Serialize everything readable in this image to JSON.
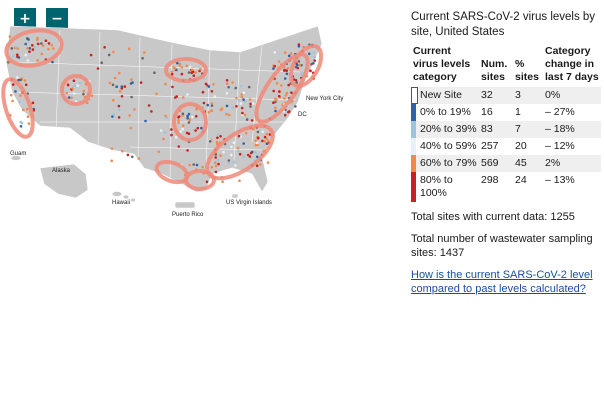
{
  "controls": {
    "zoom_in": "+",
    "zoom_out": "−"
  },
  "map": {
    "labels": {
      "new_york_city": "New York City",
      "dc": "DC",
      "guam": "Guam",
      "alaska": "Alaska",
      "hawaii": "Hawaii",
      "puerto_rico": "Puerto Rico",
      "us_virgin_islands": "US Virgin Islands"
    },
    "colors": {
      "land": "#c8c8c8",
      "border": "#ffffff",
      "highlight": "#f08a78",
      "new_site": "#ffffff",
      "cat_0_19": "#2d62a8",
      "cat_20_39": "#9fc3d9",
      "cat_40_59": "#e8f1f7",
      "cat_60_79": "#f2884a",
      "cat_80_100": "#cc1f1f"
    }
  },
  "panel": {
    "title": "Current SARS-CoV-2 virus levels by site, United States",
    "headers": {
      "category": "Current virus levels category",
      "num_sites": "Num. sites",
      "percent": "% sites",
      "change": "Category change in last 7 days"
    },
    "rows": [
      {
        "category": "New Site",
        "num": "32",
        "pct": "3",
        "change": "0%",
        "color": "#ffffff"
      },
      {
        "category": "0% to 19%",
        "num": "16",
        "pct": "1",
        "change": "– 27%",
        "color": "#2d62a8"
      },
      {
        "category": "20% to 39%",
        "num": "83",
        "pct": "7",
        "change": "– 18%",
        "color": "#9fc3d9"
      },
      {
        "category": "40% to 59%",
        "num": "257",
        "pct": "20",
        "change": "– 12%",
        "color": "#e8f1f7"
      },
      {
        "category": "60% to 79%",
        "num": "569",
        "pct": "45",
        "change": "2%",
        "color": "#f2884a"
      },
      {
        "category": "80% to 100%",
        "num": "298",
        "pct": "24",
        "change": "– 13%",
        "color": "#cc1f1f"
      }
    ],
    "total_current": "Total sites with current data: 1255",
    "total_sampling": "Total number of wastewater sampling sites: 1437",
    "link_text": "How is the current SARS-CoV-2 level compared to past levels calculated?"
  }
}
